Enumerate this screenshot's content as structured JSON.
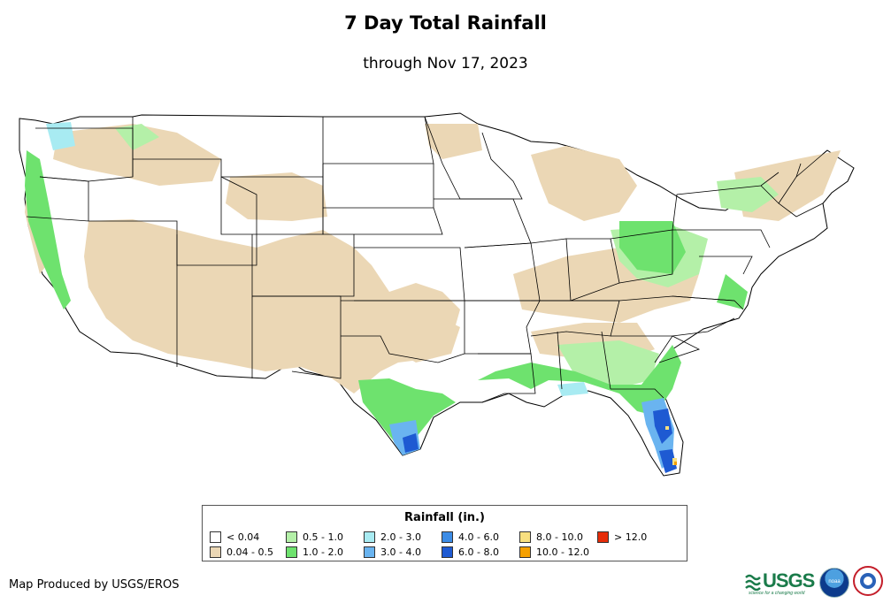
{
  "title": "7 Day Total Rainfall",
  "subtitle": "through Nov 17, 2023",
  "legend": {
    "title": "Rainfall (in.)",
    "items": [
      {
        "label": "< 0.04",
        "color": "#ffffff"
      },
      {
        "label": "0.04 - 0.5",
        "color": "#ebd7b5"
      },
      {
        "label": "0.5 - 1.0",
        "color": "#b4f0a8"
      },
      {
        "label": "1.0 - 2.0",
        "color": "#6ee26e"
      },
      {
        "label": "2.0 - 3.0",
        "color": "#a8ebf2"
      },
      {
        "label": "3.0 - 4.0",
        "color": "#6ab4f0"
      },
      {
        "label": "4.0 - 6.0",
        "color": "#3c8ce6"
      },
      {
        "label": "6.0 - 8.0",
        "color": "#1e5ad2"
      },
      {
        "label": "8.0 - 10.0",
        "color": "#f8e080"
      },
      {
        "label": "10.0 - 12.0",
        "color": "#f5a000"
      },
      {
        "label": "> 12.0",
        "color": "#e62d0a"
      }
    ]
  },
  "credit": "Map Produced by USGS/EROS",
  "logos": {
    "usgs": "USGS",
    "usgs_tagline": "science for a changing world",
    "noaa": "noaa",
    "nws_icon": "national-weather-service-icon"
  }
}
